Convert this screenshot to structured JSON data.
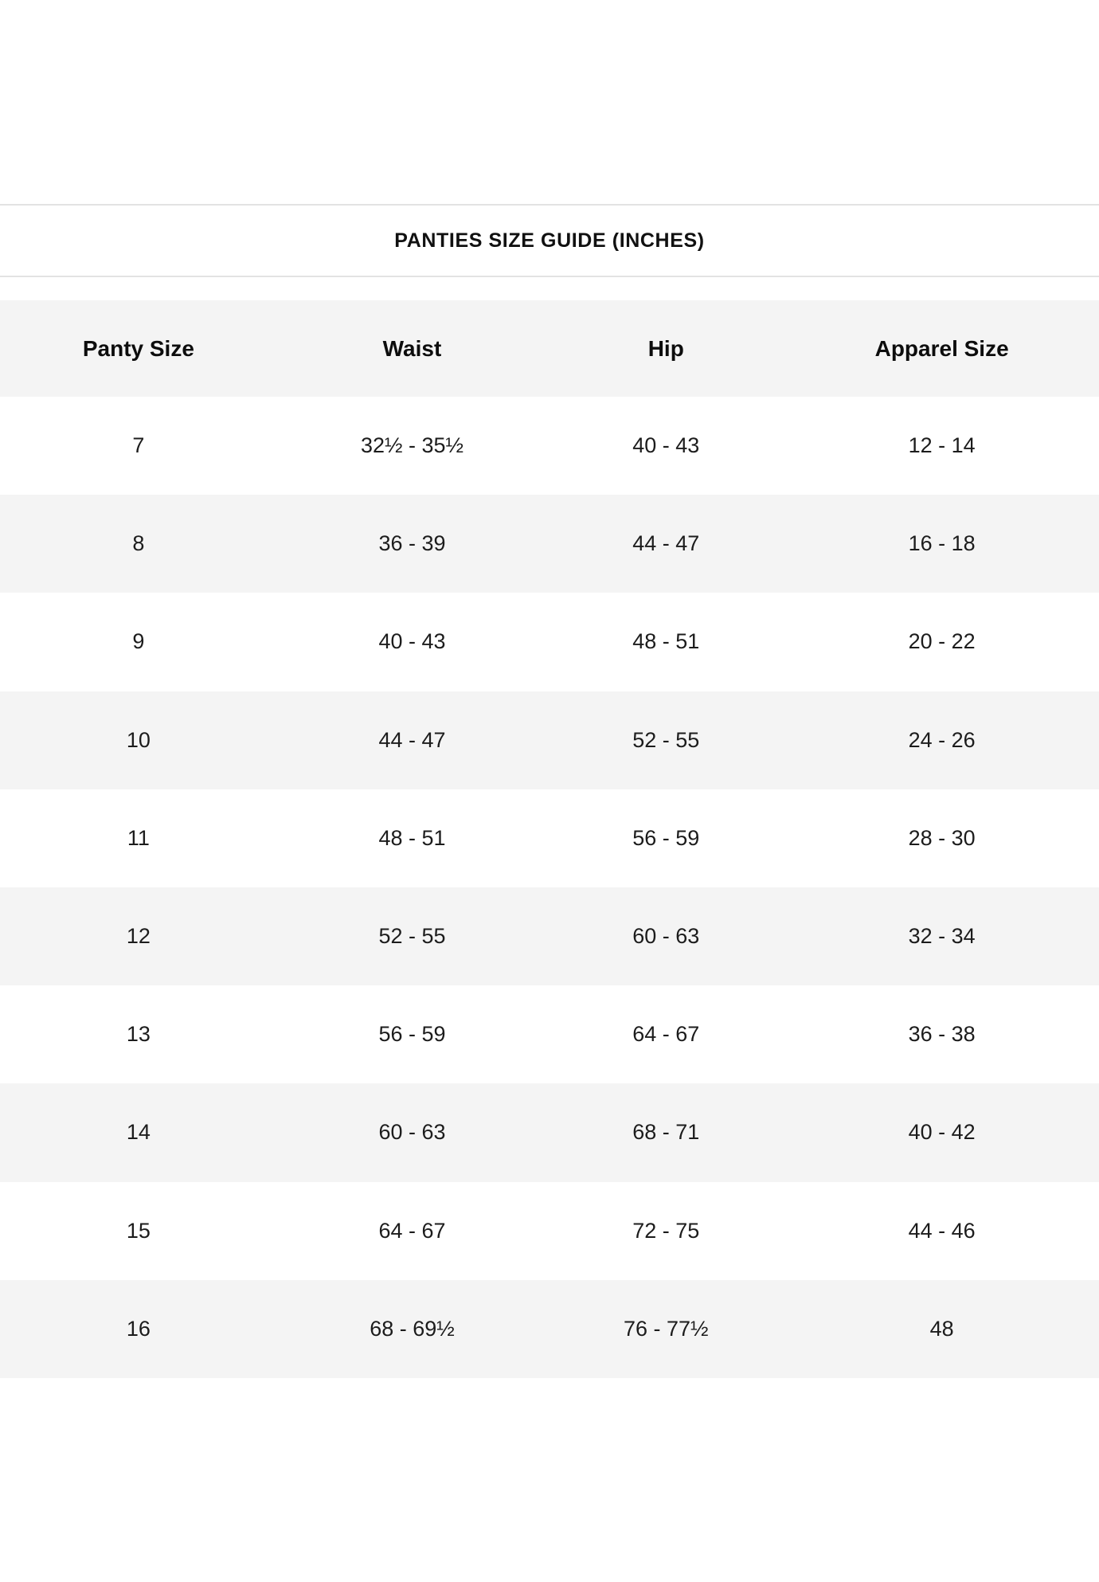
{
  "page": {
    "background_color": "#ffffff",
    "divider_color": "#e3e3e3",
    "stripe_color": "#f4f4f4",
    "text_color": "#1c1c1c"
  },
  "header": {
    "title": "PANTIES SIZE GUIDE (INCHES)"
  },
  "table": {
    "columns": [
      "Panty Size",
      "Waist",
      "Hip",
      "Apparel Size"
    ],
    "rows": [
      [
        "7",
        "32½ - 35½",
        "40 - 43",
        "12 - 14"
      ],
      [
        "8",
        "36 - 39",
        "44 - 47",
        "16 - 18"
      ],
      [
        "9",
        "40 - 43",
        "48 - 51",
        "20 - 22"
      ],
      [
        "10",
        "44 - 47",
        "52 - 55",
        "24 - 26"
      ],
      [
        "11",
        "48 - 51",
        "56 - 59",
        "28 - 30"
      ],
      [
        "12",
        "52 - 55",
        "60 - 63",
        "32 - 34"
      ],
      [
        "13",
        "56 - 59",
        "64 - 67",
        "36 - 38"
      ],
      [
        "14",
        "60 - 63",
        "68 - 71",
        "40 - 42"
      ],
      [
        "15",
        "64 - 67",
        "72 - 75",
        "44 - 46"
      ],
      [
        "16",
        "68 - 69½",
        "76 - 77½",
        "48"
      ]
    ]
  }
}
